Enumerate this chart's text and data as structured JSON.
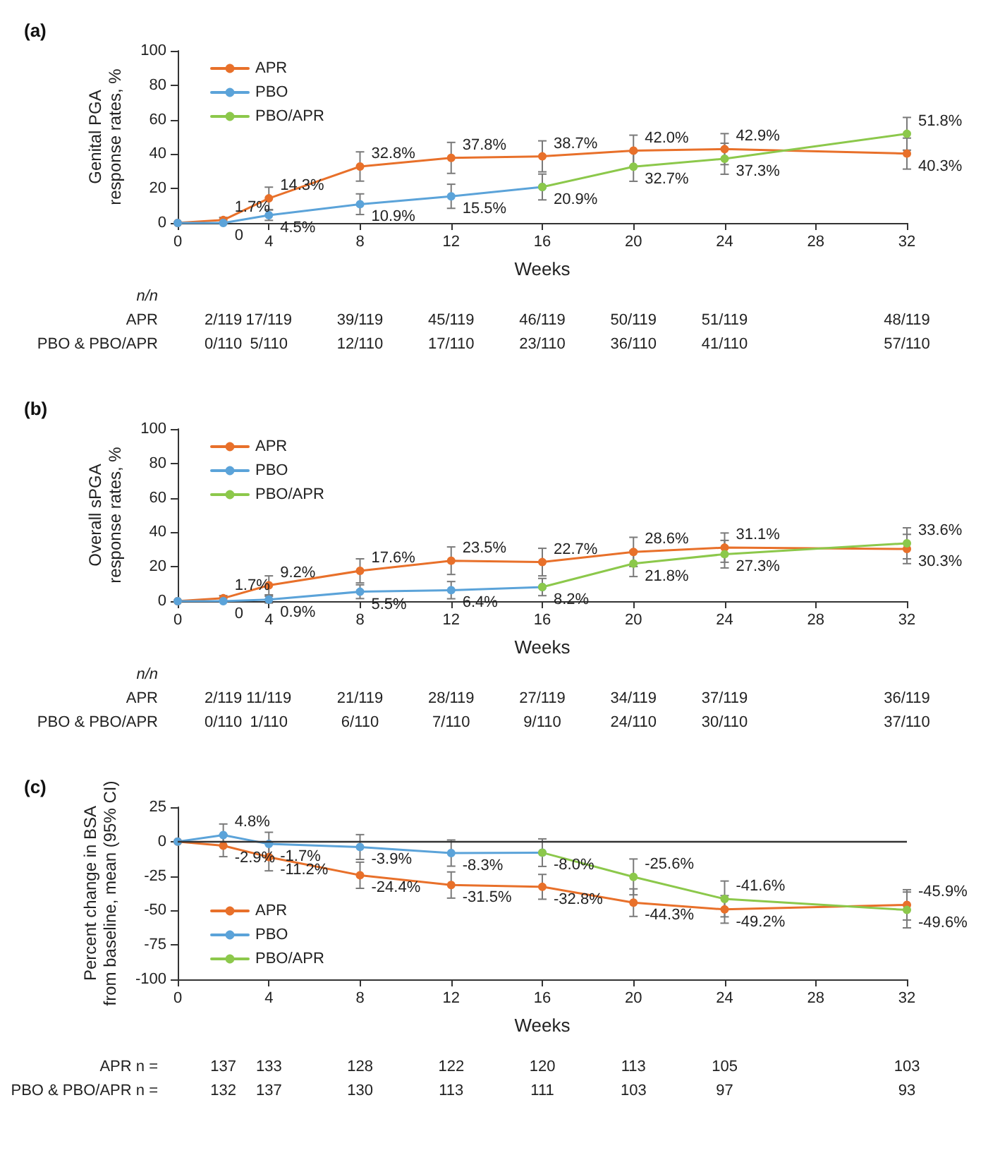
{
  "chart_data": [
    {
      "type": "line",
      "title": "(a)",
      "ylabel": "Genital PGA\nresponse rates, %",
      "xlabel": "Weeks",
      "xlim": [
        0,
        32
      ],
      "xticks": [
        0,
        4,
        8,
        12,
        16,
        20,
        24,
        28,
        32
      ],
      "ylim": [
        0,
        100
      ],
      "yticks": [
        0,
        20,
        40,
        60,
        80,
        100
      ],
      "grid": false,
      "legend": "top left",
      "marker": "circle",
      "line_style": "solid",
      "x": [
        0,
        2,
        4,
        8,
        12,
        16,
        20,
        24,
        32
      ],
      "series": [
        {
          "name": "APR",
          "color": "#e8702a",
          "values": [
            0,
            1.7,
            14.3,
            32.8,
            37.8,
            38.7,
            42.0,
            42.9,
            40.3
          ],
          "value_labels": [
            null,
            "1.7%",
            "14.3%",
            "32.8%",
            "37.8%",
            "38.7%",
            "42.0%",
            "42.9%",
            "40.3%"
          ],
          "errors": [
            null,
            1.5,
            6.5,
            8.5,
            9,
            9,
            9,
            9,
            9
          ]
        },
        {
          "name": "PBO",
          "color": "#5ba3d9",
          "x": [
            0,
            2,
            4,
            8,
            12,
            16
          ],
          "values": [
            0,
            0,
            4.5,
            10.9,
            15.5,
            20.9
          ],
          "value_labels": [
            null,
            "0",
            "4.5%",
            "10.9%",
            "15.5%",
            "20.9%"
          ],
          "errors": [
            null,
            null,
            3,
            6,
            7,
            7.5
          ]
        },
        {
          "name": "PBO/APR",
          "color": "#8cc84b",
          "x": [
            16,
            20,
            24,
            32
          ],
          "values": [
            20.9,
            32.7,
            37.3,
            51.8
          ],
          "value_labels": [
            null,
            "32.7%",
            "37.3%",
            "51.8%"
          ],
          "errors": [
            null,
            8.5,
            9,
            9.5
          ]
        }
      ],
      "annotations": [
        "n/n",
        "APR",
        "2/119",
        "17/119",
        "39/119",
        "45/119",
        "46/119",
        "50/119",
        "51/119",
        "48/119",
        "PBO & PBO/APR",
        "0/110",
        "5/110",
        "12/110",
        "17/110",
        "23/110",
        "36/110",
        "41/110",
        "57/110"
      ]
    },
    {
      "type": "line",
      "title": "(b)",
      "ylabel": "Overall sPGA\nresponse rates, %",
      "xlabel": "Weeks",
      "xlim": [
        0,
        32
      ],
      "xticks": [
        0,
        4,
        8,
        12,
        16,
        20,
        24,
        28,
        32
      ],
      "ylim": [
        0,
        100
      ],
      "yticks": [
        0,
        20,
        40,
        60,
        80,
        100
      ],
      "grid": false,
      "legend": "top left",
      "marker": "circle",
      "line_style": "solid",
      "x": [
        0,
        2,
        4,
        8,
        12,
        16,
        20,
        24,
        32
      ],
      "series": [
        {
          "name": "APR",
          "color": "#e8702a",
          "values": [
            0,
            1.7,
            9.2,
            17.6,
            23.5,
            22.7,
            28.6,
            31.1,
            30.3
          ],
          "value_labels": [
            null,
            "1.7%",
            "9.2%",
            "17.6%",
            "23.5%",
            "22.7%",
            "28.6%",
            "31.1%",
            "30.3%"
          ],
          "errors": [
            null,
            1.5,
            5.5,
            7,
            8,
            8,
            8.5,
            8.5,
            8.5
          ]
        },
        {
          "name": "PBO",
          "color": "#5ba3d9",
          "x": [
            0,
            2,
            4,
            8,
            12,
            16
          ],
          "values": [
            0,
            0,
            0.9,
            5.5,
            6.4,
            8.2
          ],
          "value_labels": [
            null,
            "0",
            "0.9%",
            "5.5%",
            "6.4%",
            "8.2%"
          ],
          "errors": [
            null,
            null,
            2,
            4,
            5,
            5
          ]
        },
        {
          "name": "PBO/APR",
          "color": "#8cc84b",
          "x": [
            16,
            20,
            24,
            32
          ],
          "values": [
            8.2,
            21.8,
            27.3,
            33.6
          ],
          "value_labels": [
            null,
            "21.8%",
            "27.3%",
            "33.6%"
          ],
          "errors": [
            null,
            7.5,
            8,
            9
          ]
        }
      ],
      "annotations": [
        "n/n",
        "APR",
        "2/119",
        "11/119",
        "21/119",
        "28/119",
        "27/119",
        "34/119",
        "37/119",
        "36/119",
        "PBO & PBO/APR",
        "0/110",
        "1/110",
        "6/110",
        "7/110",
        "9/110",
        "24/110",
        "30/110",
        "37/110"
      ]
    },
    {
      "type": "line",
      "title": "(c)",
      "ylabel": "Percent change in BSA\nfrom baseline, mean (95% CI)",
      "xlabel": "Weeks",
      "xlim": [
        0,
        32
      ],
      "xticks": [
        0,
        4,
        8,
        12,
        16,
        20,
        24,
        28,
        32
      ],
      "ylim": [
        -100,
        25
      ],
      "yticks": [
        -100,
        -75,
        -50,
        -25,
        0,
        25
      ],
      "grid": false,
      "legend": "bottom left",
      "marker": "circle",
      "line_style": "solid",
      "ref_lines": [
        {
          "axis": "y",
          "value": 0,
          "color": "#333333"
        }
      ],
      "x": [
        0,
        2,
        4,
        8,
        12,
        16,
        20,
        24,
        32
      ],
      "series": [
        {
          "name": "APR",
          "color": "#e8702a",
          "values": [
            0,
            -2.9,
            -11.2,
            -24.4,
            -31.5,
            -32.8,
            -44.3,
            -49.2,
            -45.9
          ],
          "value_labels": [
            null,
            "-2.9%",
            "-11.2%",
            "-24.4%",
            "-31.5%",
            "-32.8%",
            "-44.3%",
            "-49.2%",
            "-45.9%"
          ],
          "errors": [
            null,
            8,
            10,
            9.5,
            9.5,
            9,
            10,
            10,
            11
          ]
        },
        {
          "name": "PBO",
          "color": "#5ba3d9",
          "x": [
            0,
            2,
            4,
            8,
            12,
            16
          ],
          "values": [
            0,
            4.8,
            -1.7,
            -3.9,
            -8.3,
            -8.0
          ],
          "value_labels": [
            null,
            "4.8%",
            "-1.7%",
            "-3.9%",
            "-8.3%",
            "-8.0%"
          ],
          "errors": [
            null,
            8,
            8.5,
            9,
            9.5,
            10
          ]
        },
        {
          "name": "PBO/APR",
          "color": "#8cc84b",
          "x": [
            16,
            20,
            24,
            32
          ],
          "values": [
            -8.0,
            -25.6,
            -41.6,
            -49.6
          ],
          "value_labels": [
            null,
            "-25.6%",
            "-41.6%",
            "-49.6%"
          ],
          "errors": [
            null,
            13,
            13,
            13
          ]
        }
      ],
      "annotations": [
        "APR n =",
        "137",
        "133",
        "128",
        "122",
        "120",
        "113",
        "105",
        "103",
        "PBO & PBO/APR n =",
        "132",
        "137",
        "130",
        "113",
        "111",
        "103",
        "97",
        "93"
      ]
    }
  ]
}
